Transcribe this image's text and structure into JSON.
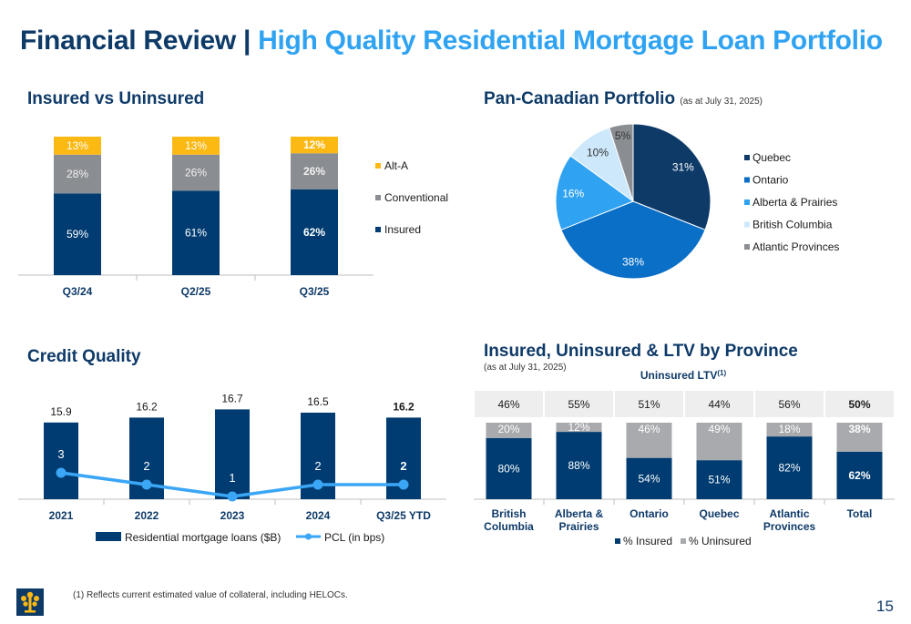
{
  "title": {
    "part1": "Financial Review | ",
    "part2": "High Quality Residential Mortgage Loan Portfolio"
  },
  "sections": {
    "insured": "Insured vs Uninsured",
    "pan": "Pan-Canadian Portfolio",
    "pan_note": "(as at July 31, 2025)",
    "credit": "Credit Quality",
    "province": "Insured, Uninsured & LTV by Province",
    "province_note": "(as at July 31, 2025)"
  },
  "footnote": "(1) Reflects current estimated value of collateral, including HELOCs.",
  "page_number": "15",
  "chart_data": [
    {
      "type": "bar",
      "stacked": true,
      "categories": [
        "Q3/24",
        "Q2/25",
        "Q3/25"
      ],
      "series": [
        {
          "name": "Insured",
          "values": [
            59,
            61,
            62
          ],
          "color": "#003c71"
        },
        {
          "name": "Conventional",
          "values": [
            28,
            26,
            26
          ],
          "color": "#8a8d91"
        },
        {
          "name": "Alt-A",
          "values": [
            13,
            13,
            12
          ],
          "color": "#fdb913"
        }
      ],
      "legend": [
        "Alt-A",
        "Conventional",
        "Insured"
      ],
      "legend_position": "right",
      "unit": "%"
    },
    {
      "type": "pie",
      "labels": [
        "Quebec",
        "Ontario",
        "Alberta & Prairies",
        "British Columbia",
        "Atlantic Provinces"
      ],
      "values": [
        31,
        38,
        16,
        10,
        5
      ],
      "colors": [
        "#0e3a68",
        "#0a6fc7",
        "#2fa3f2",
        "#cde8fb",
        "#8a8d91"
      ],
      "legend_position": "right",
      "unit": "%"
    },
    {
      "type": "bar",
      "categories": [
        "2021",
        "2022",
        "2023",
        "2024",
        "Q3/25 YTD"
      ],
      "bar_series": {
        "name": "Residential mortgage loans ($B)",
        "values": [
          15.9,
          16.2,
          16.7,
          16.5,
          16.2
        ],
        "color": "#003c71"
      },
      "line_series": {
        "name": "PCL (in bps)",
        "values": [
          3,
          2,
          1,
          2,
          2
        ],
        "color": "#3aa6f5"
      },
      "legend_position": "bottom"
    },
    {
      "type": "bar",
      "stacked": true,
      "categories": [
        "British Columbia",
        "Alberta & Prairies",
        "Ontario",
        "Quebec",
        "Atlantic Provinces",
        "Total"
      ],
      "series": [
        {
          "name": "% Insured",
          "values": [
            80,
            88,
            54,
            51,
            82,
            62
          ],
          "color": "#003c71"
        },
        {
          "name": "% Uninsured",
          "values": [
            20,
            12,
            46,
            49,
            18,
            38
          ],
          "color": "#a8aaad"
        }
      ],
      "ltv_title": "Uninsured LTV",
      "ltv_sup": "(1)",
      "ltv_values": [
        "46%",
        "55%",
        "51%",
        "44%",
        "56%",
        "50%"
      ],
      "legend_position": "bottom",
      "unit": "%"
    }
  ]
}
